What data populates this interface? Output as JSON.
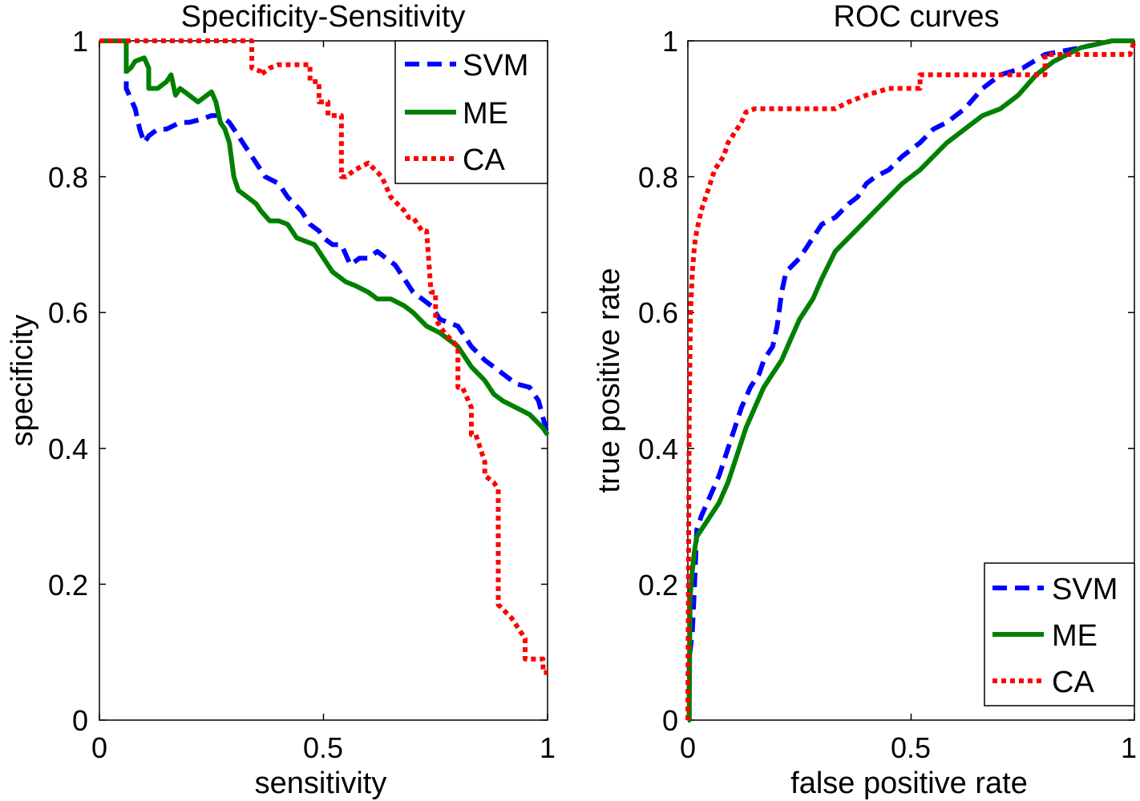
{
  "chart_data": [
    {
      "id": "left",
      "type": "line",
      "title": "Specificity-Sensitivity",
      "xlabel": "sensitivity",
      "ylabel": "specificity",
      "xlim": [
        0,
        1
      ],
      "ylim": [
        0,
        1
      ],
      "xticks": [
        0,
        0.5,
        1
      ],
      "yticks": [
        0,
        0.2,
        0.4,
        0.6,
        0.8,
        1
      ],
      "xtick_labels": [
        "0",
        "0.5",
        "1"
      ],
      "ytick_labels": [
        "0",
        "0.2",
        "0.4",
        "0.6",
        "0.8",
        "1"
      ],
      "grid": false,
      "legend_position": "top-right",
      "series": [
        {
          "name": "SVM",
          "color": "#0000ff",
          "style": "dashed",
          "x": [
            0.0,
            0.06,
            0.06,
            0.08,
            0.09,
            0.1,
            0.11,
            0.13,
            0.15,
            0.18,
            0.2,
            0.23,
            0.25,
            0.27,
            0.29,
            0.3,
            0.31,
            0.33,
            0.35,
            0.37,
            0.4,
            0.42,
            0.45,
            0.47,
            0.49,
            0.5,
            0.52,
            0.54,
            0.56,
            0.58,
            0.6,
            0.62,
            0.64,
            0.66,
            0.68,
            0.7,
            0.72,
            0.74,
            0.76,
            0.78,
            0.8,
            0.83,
            0.86,
            0.9,
            0.93,
            0.96,
            0.98,
            1.0
          ],
          "y": [
            1.0,
            1.0,
            0.93,
            0.9,
            0.87,
            0.85,
            0.86,
            0.87,
            0.87,
            0.88,
            0.88,
            0.885,
            0.89,
            0.89,
            0.88,
            0.87,
            0.86,
            0.84,
            0.82,
            0.8,
            0.79,
            0.77,
            0.75,
            0.73,
            0.72,
            0.71,
            0.7,
            0.7,
            0.67,
            0.68,
            0.68,
            0.69,
            0.68,
            0.67,
            0.65,
            0.63,
            0.62,
            0.61,
            0.59,
            0.585,
            0.58,
            0.55,
            0.53,
            0.51,
            0.495,
            0.49,
            0.47,
            0.42
          ]
        },
        {
          "name": "ME",
          "color": "#008000",
          "style": "solid",
          "x": [
            0.0,
            0.06,
            0.06,
            0.07,
            0.08,
            0.1,
            0.11,
            0.11,
            0.13,
            0.15,
            0.16,
            0.17,
            0.18,
            0.2,
            0.22,
            0.24,
            0.25,
            0.26,
            0.27,
            0.28,
            0.29,
            0.3,
            0.31,
            0.33,
            0.35,
            0.36,
            0.38,
            0.4,
            0.42,
            0.44,
            0.46,
            0.48,
            0.5,
            0.52,
            0.55,
            0.57,
            0.6,
            0.62,
            0.65,
            0.68,
            0.7,
            0.73,
            0.76,
            0.78,
            0.8,
            0.83,
            0.86,
            0.88,
            0.9,
            0.93,
            0.96,
            0.99,
            1.0
          ],
          "y": [
            1.0,
            1.0,
            0.955,
            0.96,
            0.97,
            0.975,
            0.96,
            0.93,
            0.93,
            0.94,
            0.95,
            0.92,
            0.93,
            0.92,
            0.91,
            0.92,
            0.925,
            0.91,
            0.88,
            0.87,
            0.85,
            0.8,
            0.78,
            0.77,
            0.76,
            0.75,
            0.735,
            0.735,
            0.73,
            0.71,
            0.705,
            0.7,
            0.68,
            0.66,
            0.645,
            0.64,
            0.63,
            0.62,
            0.62,
            0.61,
            0.6,
            0.58,
            0.57,
            0.56,
            0.55,
            0.52,
            0.5,
            0.48,
            0.47,
            0.46,
            0.45,
            0.43,
            0.42
          ]
        },
        {
          "name": "CA",
          "color": "#ff0000",
          "style": "dotted",
          "x": [
            0.0,
            0.34,
            0.34,
            0.36,
            0.36,
            0.38,
            0.4,
            0.43,
            0.47,
            0.47,
            0.49,
            0.49,
            0.51,
            0.51,
            0.54,
            0.54,
            0.55,
            0.55,
            0.57,
            0.6,
            0.63,
            0.65,
            0.68,
            0.69,
            0.7,
            0.72,
            0.73,
            0.74,
            0.75,
            0.75,
            0.77,
            0.8,
            0.8,
            0.81,
            0.83,
            0.83,
            0.84,
            0.86,
            0.86,
            0.88,
            0.89,
            0.89,
            0.92,
            0.95,
            0.95,
            0.99,
            0.99,
            1.0
          ],
          "y": [
            1.0,
            1.0,
            0.96,
            0.955,
            0.95,
            0.96,
            0.965,
            0.965,
            0.965,
            0.94,
            0.94,
            0.91,
            0.91,
            0.89,
            0.89,
            0.8,
            0.8,
            0.8,
            0.81,
            0.82,
            0.8,
            0.77,
            0.75,
            0.74,
            0.74,
            0.72,
            0.72,
            0.63,
            0.63,
            0.59,
            0.57,
            0.55,
            0.49,
            0.49,
            0.46,
            0.42,
            0.42,
            0.38,
            0.36,
            0.35,
            0.34,
            0.17,
            0.15,
            0.12,
            0.09,
            0.09,
            0.07,
            0.07
          ]
        }
      ]
    },
    {
      "id": "right",
      "type": "line",
      "title": "ROC curves",
      "xlabel": "false positive rate",
      "ylabel": "true positive rate",
      "xlim": [
        0,
        1
      ],
      "ylim": [
        0,
        1
      ],
      "xticks": [
        0,
        0.5,
        1
      ],
      "yticks": [
        0,
        0.2,
        0.4,
        0.6,
        0.8,
        1
      ],
      "xtick_labels": [
        "0",
        "0.5",
        "1"
      ],
      "ytick_labels": [
        "0",
        "0.2",
        "0.4",
        "0.6",
        "0.8",
        "1"
      ],
      "grid": false,
      "legend_position": "bottom-right",
      "series": [
        {
          "name": "SVM",
          "color": "#0000ff",
          "style": "dashed",
          "x": [
            0.0,
            0.003,
            0.003,
            0.01,
            0.015,
            0.02,
            0.03,
            0.05,
            0.07,
            0.09,
            0.11,
            0.12,
            0.14,
            0.16,
            0.17,
            0.19,
            0.2,
            0.21,
            0.22,
            0.25,
            0.28,
            0.3,
            0.33,
            0.36,
            0.38,
            0.4,
            0.42,
            0.45,
            0.48,
            0.52,
            0.55,
            0.58,
            0.62,
            0.66,
            0.7,
            0.75,
            0.8,
            0.88,
            0.95,
            1.0
          ],
          "y": [
            0.0,
            0.0,
            0.09,
            0.13,
            0.2,
            0.28,
            0.3,
            0.33,
            0.36,
            0.4,
            0.44,
            0.46,
            0.49,
            0.51,
            0.53,
            0.55,
            0.58,
            0.63,
            0.66,
            0.68,
            0.71,
            0.73,
            0.74,
            0.76,
            0.77,
            0.79,
            0.8,
            0.81,
            0.83,
            0.85,
            0.87,
            0.88,
            0.9,
            0.93,
            0.95,
            0.96,
            0.98,
            0.99,
            1.0,
            1.0
          ]
        },
        {
          "name": "ME",
          "color": "#008000",
          "style": "solid",
          "x": [
            0.0,
            0.003,
            0.005,
            0.01,
            0.015,
            0.02,
            0.03,
            0.05,
            0.07,
            0.09,
            0.11,
            0.13,
            0.15,
            0.17,
            0.19,
            0.21,
            0.23,
            0.25,
            0.28,
            0.3,
            0.33,
            0.36,
            0.39,
            0.42,
            0.45,
            0.48,
            0.52,
            0.55,
            0.58,
            0.62,
            0.66,
            0.7,
            0.74,
            0.78,
            0.82,
            0.88,
            0.95,
            1.0
          ],
          "y": [
            0.0,
            0.0,
            0.18,
            0.22,
            0.25,
            0.27,
            0.28,
            0.3,
            0.32,
            0.35,
            0.39,
            0.43,
            0.46,
            0.49,
            0.51,
            0.53,
            0.56,
            0.59,
            0.62,
            0.65,
            0.69,
            0.71,
            0.73,
            0.75,
            0.77,
            0.79,
            0.81,
            0.83,
            0.85,
            0.87,
            0.89,
            0.9,
            0.92,
            0.95,
            0.97,
            0.99,
            1.0,
            1.0
          ]
        },
        {
          "name": "CA",
          "color": "#ff0000",
          "style": "dotted",
          "x": [
            0.0,
            0.003,
            0.006,
            0.01,
            0.015,
            0.02,
            0.03,
            0.04,
            0.05,
            0.06,
            0.07,
            0.08,
            0.09,
            0.1,
            0.11,
            0.12,
            0.13,
            0.15,
            0.2,
            0.25,
            0.3,
            0.33,
            0.36,
            0.4,
            0.45,
            0.52,
            0.52,
            0.6,
            0.7,
            0.8,
            0.8,
            0.9,
            0.99,
            1.0
          ],
          "y": [
            0.0,
            0.45,
            0.6,
            0.66,
            0.7,
            0.72,
            0.75,
            0.77,
            0.79,
            0.81,
            0.82,
            0.83,
            0.85,
            0.86,
            0.87,
            0.88,
            0.895,
            0.9,
            0.9,
            0.9,
            0.9,
            0.9,
            0.91,
            0.92,
            0.93,
            0.93,
            0.95,
            0.95,
            0.95,
            0.95,
            0.98,
            0.98,
            0.98,
            1.0
          ]
        }
      ]
    }
  ]
}
